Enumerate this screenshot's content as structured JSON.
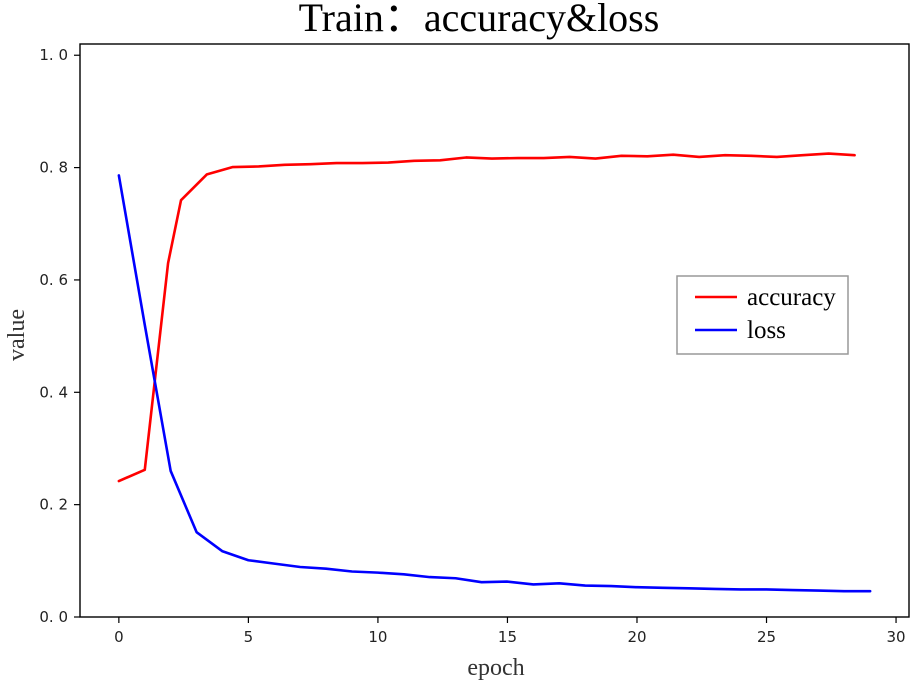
{
  "chart_data": {
    "type": "line",
    "title": "Train：accuracy&loss",
    "xlabel": "epoch",
    "ylabel": "value",
    "xlim": [
      -1.5,
      30.5
    ],
    "ylim": [
      0.0,
      1.02
    ],
    "xticks": [
      0,
      5,
      10,
      15,
      20,
      25,
      30
    ],
    "yticks": [
      0.0,
      0.2,
      0.4,
      0.6,
      0.8,
      1.0
    ],
    "xtick_labels": [
      "0",
      "5",
      "10",
      "15",
      "20",
      "25",
      "30"
    ],
    "ytick_labels": [
      "0. 0",
      "0. 2",
      "0. 4",
      "0. 6",
      "0. 8",
      "1. 0"
    ],
    "grid": false,
    "legend_position": "right",
    "x": [
      0,
      1,
      2,
      2.4,
      3.4,
      4.4,
      5.4,
      6.4,
      7.4,
      8.4,
      9.4,
      10.4,
      11.4,
      12.4,
      13.4,
      14.4,
      15.4,
      16.4,
      17.4,
      18.4,
      19.4,
      20.4,
      21.4,
      22.4,
      23.4,
      24.4,
      25.4,
      26.4,
      27.4,
      28.4,
      29
    ],
    "series": [
      {
        "name": "accuracy",
        "color": "#ff0000",
        "x": [
          0,
          1,
          1.9,
          2.4,
          3.4,
          4.4,
          5.4,
          6.4,
          7.4,
          8.4,
          9.4,
          10.4,
          11.4,
          12.4,
          13.4,
          14.4,
          15.4,
          16.4,
          17.4,
          18.4,
          19.4,
          20.4,
          21.4,
          22.4,
          23.4,
          24.4,
          25.4,
          26.4,
          27.4,
          28.4
        ],
        "values": [
          0.242,
          0.262,
          0.63,
          0.742,
          0.788,
          0.801,
          0.802,
          0.805,
          0.806,
          0.808,
          0.808,
          0.809,
          0.812,
          0.813,
          0.818,
          0.816,
          0.817,
          0.817,
          0.819,
          0.816,
          0.821,
          0.82,
          0.823,
          0.819,
          0.822,
          0.821,
          0.819,
          0.822,
          0.825,
          0.822
        ]
      },
      {
        "name": "loss",
        "color": "#0000ff",
        "x": [
          0,
          1,
          2,
          3,
          4,
          5,
          6,
          7,
          8,
          9,
          10,
          11,
          12,
          13,
          14,
          15,
          16,
          17,
          18,
          19,
          20,
          21,
          22,
          23,
          24,
          25,
          26,
          27,
          28,
          29
        ],
        "values": [
          0.786,
          0.52,
          0.26,
          0.151,
          0.117,
          0.101,
          0.095,
          0.089,
          0.086,
          0.081,
          0.079,
          0.076,
          0.071,
          0.069,
          0.062,
          0.063,
          0.058,
          0.06,
          0.056,
          0.055,
          0.053,
          0.052,
          0.051,
          0.05,
          0.049,
          0.049,
          0.048,
          0.047,
          0.046,
          0.046
        ]
      }
    ]
  }
}
